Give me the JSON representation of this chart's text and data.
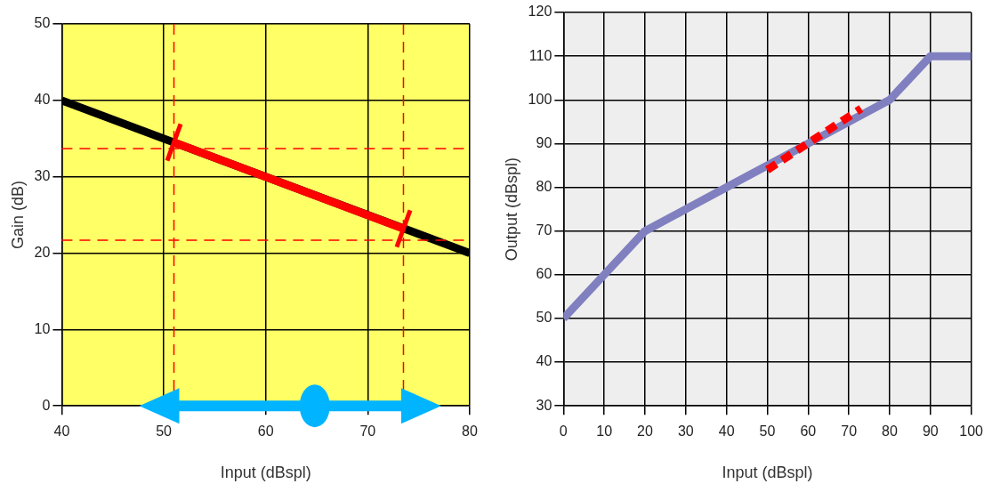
{
  "chart_data": [
    {
      "type": "line",
      "xlabel": "Input (dBspl)",
      "ylabel": "Gain (dB)",
      "xlim": [
        40,
        80
      ],
      "xticks": [
        40,
        50,
        60,
        70,
        80
      ],
      "ylim": [
        0,
        50
      ],
      "yticks": [
        0,
        10,
        20,
        30,
        40,
        50
      ],
      "grid": true,
      "marker": "none",
      "series": [
        {
          "color": "#000000",
          "x": [
            40,
            80
          ],
          "values": [
            40,
            20
          ]
        },
        {
          "color": "#ff0000",
          "marker": "cross",
          "x": [
            51,
            73.5
          ],
          "values": [
            34.5,
            23.2
          ]
        }
      ],
      "ref_lines": [
        {
          "axis": "y",
          "value": 33.7,
          "color": "#ff0000",
          "line_style": "dashed"
        },
        {
          "axis": "y",
          "value": 21.7,
          "color": "#ff0000",
          "line_style": "dashed"
        },
        {
          "axis": "x",
          "value": 51,
          "color": "#ff0000",
          "line_style": "dashed"
        },
        {
          "axis": "x",
          "value": 73.5,
          "color": "#ff0000",
          "line_style": "dashed"
        }
      ]
    },
    {
      "type": "line",
      "xlabel": "Input (dBspl)",
      "ylabel": "Output (dBspl)",
      "xlim": [
        0,
        100
      ],
      "xticks": [
        0,
        10,
        20,
        30,
        40,
        50,
        60,
        70,
        80,
        90,
        100
      ],
      "ylim": [
        30,
        120
      ],
      "yticks": [
        30,
        40,
        50,
        60,
        70,
        80,
        90,
        100,
        110,
        120
      ],
      "grid": true,
      "marker": "none",
      "series": [
        {
          "color": "#8080c0",
          "x": [
            0,
            10,
            20,
            30,
            40,
            50,
            60,
            70,
            80,
            90,
            100
          ],
          "values": [
            50,
            60,
            70,
            75,
            80,
            85,
            90,
            95,
            100,
            110,
            110
          ]
        },
        {
          "color": "#ff0000",
          "line_style": "dashed",
          "x": [
            50,
            73
          ],
          "values": [
            84,
            98
          ]
        }
      ]
    }
  ]
}
